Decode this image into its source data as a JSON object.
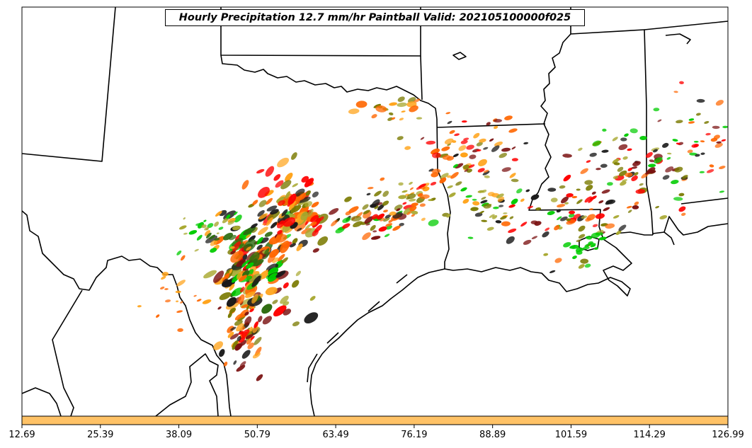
{
  "title": "Hourly Precipitation 12.7 mm/hr Paintball Valid: 202105100000f025",
  "colorbar": {
    "fill_color": "#ffc266",
    "ticks": [
      "12.69",
      "25.39",
      "38.09",
      "50.79",
      "63.49",
      "76.19",
      "88.89",
      "101.59",
      "114.29",
      "126.99"
    ]
  },
  "colors": {
    "member_colors": [
      "#ff0000",
      "#ff6600",
      "#ffa31a",
      "#00cc00",
      "#2e6b0f",
      "#7a7a00",
      "#a8a830",
      "#7a1010",
      "#1a1a1a",
      "#cc5500"
    ]
  }
}
